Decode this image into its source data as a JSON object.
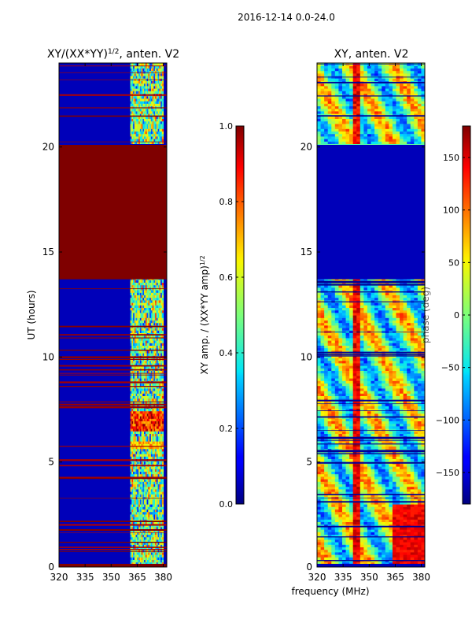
{
  "suptitle": "2016-12-14 0.0-24.0",
  "chart_data": [
    {
      "type": "heatmap",
      "title_main": "XY/(XX*YY)",
      "title_sup": "1/2",
      "title_rest": ", anten. V2",
      "xlabel": "",
      "ylabel": "UT (hours)",
      "xlim": [
        320,
        382
      ],
      "ylim": [
        0,
        24
      ],
      "xticks": [
        320,
        335,
        350,
        365,
        380
      ],
      "yticks": [
        0,
        5,
        10,
        15,
        20
      ],
      "colorbar": {
        "label_main": "XY amp. / (XX*YY amp)",
        "label_sup": "1/2",
        "range": [
          0.0,
          1.0
        ],
        "ticks": [
          "0.0",
          "0.2",
          "0.4",
          "0.6",
          "0.8",
          "1.0"
        ]
      },
      "saturated_band_hours": [
        13.7,
        20.1
      ],
      "active_freq_band_mhz": [
        361,
        380
      ]
    },
    {
      "type": "heatmap",
      "title": "XY, anten. V2",
      "xlabel": "frequency (MHz)",
      "ylabel": "",
      "xlim": [
        320,
        382
      ],
      "ylim": [
        0,
        24
      ],
      "xticks": [
        320,
        335,
        350,
        365,
        380
      ],
      "yticks": [
        0,
        5,
        10,
        15,
        20
      ],
      "colorbar": {
        "label": "phase (deg)",
        "range": [
          -180,
          180
        ],
        "ticks": [
          "−150",
          "−100",
          "−50",
          "0",
          "50",
          "100",
          "150"
        ]
      },
      "flat_band_hours": [
        13.7,
        20.1
      ]
    }
  ]
}
